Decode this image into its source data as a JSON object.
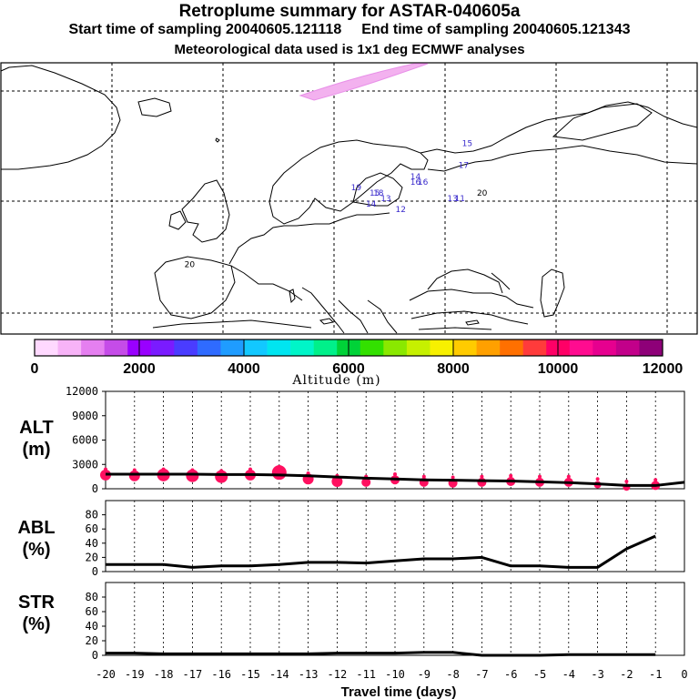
{
  "header": {
    "title": "Retroplume summary for ASTAR-040605a",
    "start_label": "Start time of sampling 20040605.121118",
    "end_label": "End time of sampling 20040605.121343",
    "met_label": "Meteorological data used is 1x1 deg ECMWF analyses"
  },
  "map": {
    "markers": [
      {
        "label": "20",
        "lon": -39,
        "lat": 48
      },
      {
        "label": "20",
        "lon": 40,
        "lat": 61
      },
      {
        "label": "19",
        "lon": 6,
        "lat": 62
      },
      {
        "label": "18",
        "lon": 12,
        "lat": 61
      },
      {
        "label": "17",
        "lon": 35,
        "lat": 66
      },
      {
        "label": "16",
        "lon": 22,
        "lat": 63
      },
      {
        "label": "15",
        "lon": 11,
        "lat": 61
      },
      {
        "label": "14",
        "lon": 10,
        "lat": 59
      },
      {
        "label": "13",
        "lon": 14,
        "lat": 60
      },
      {
        "label": "12",
        "lon": 18,
        "lat": 58
      },
      {
        "label": "11",
        "lon": 34,
        "lat": 60
      },
      {
        "label": "13",
        "lon": 32,
        "lat": 60
      },
      {
        "label": "16",
        "lon": 24,
        "lat": 63
      },
      {
        "label": "15",
        "lon": 36,
        "lat": 70
      },
      {
        "label": "14",
        "lon": 22,
        "lat": 64
      }
    ]
  },
  "colorbar": {
    "colors": [
      "#ffd9ff",
      "#f7b3f7",
      "#e57ff0",
      "#c54ce8",
      "#9900ff",
      "#7a1bff",
      "#4a3cff",
      "#2f6bff",
      "#1f9cff",
      "#12c8ff",
      "#00e5f0",
      "#00f5c8",
      "#00f08a",
      "#00d238",
      "#33e000",
      "#8ae800",
      "#c6f000",
      "#f7f000",
      "#ffcb00",
      "#ffa000",
      "#ff7000",
      "#ff3b3b",
      "#ff0066",
      "#ff0c90",
      "#e6008f",
      "#c2008a",
      "#8e0078"
    ],
    "ticks": [
      "0",
      "2000",
      "4000",
      "6000",
      "8000",
      "10000",
      "12000"
    ],
    "label": "Altitude (m)"
  },
  "panels": {
    "alt": {
      "label_top": "ALT",
      "label_bottom": "(m)",
      "ylim": [
        0,
        12000
      ],
      "yticks": [
        "12000",
        "9000",
        "6000",
        "3000",
        "0"
      ]
    },
    "abl": {
      "label_top": "ABL",
      "label_bottom": "(%)",
      "ylim": [
        0,
        100
      ],
      "yticks": [
        "80",
        "60",
        "40",
        "20",
        "0"
      ]
    },
    "str": {
      "label_top": "STR",
      "label_bottom": "(%)",
      "ylim": [
        0,
        100
      ],
      "yticks": [
        "80",
        "60",
        "40",
        "20",
        "0"
      ]
    }
  },
  "xaxis": {
    "label": "Travel time (days)",
    "ticks": [
      "-20",
      "-19",
      "-18",
      "-17",
      "-16",
      "-15",
      "-14",
      "-13",
      "-12",
      "-11",
      "-10",
      "-9",
      "-8",
      "-7",
      "-6",
      "-5",
      "-4",
      "-3",
      "-2",
      "-1",
      "0"
    ]
  },
  "chart_data": [
    {
      "type": "line",
      "title": "ALT",
      "ylabel": "ALT (m)",
      "xlabel": "Travel time (days)",
      "xlim": [
        -20,
        0
      ],
      "ylim": [
        0,
        12000
      ],
      "x": [
        -20,
        -19,
        -18,
        -17,
        -16,
        -15,
        -14,
        -13,
        -12,
        -11,
        -10,
        -9,
        -8,
        -7,
        -6,
        -5,
        -4,
        -3,
        -2,
        -1,
        0
      ],
      "values": [
        1800,
        1800,
        1800,
        1800,
        1750,
        1750,
        1700,
        1600,
        1450,
        1300,
        1200,
        1100,
        1050,
        1000,
        950,
        850,
        750,
        600,
        400,
        400,
        800
      ],
      "scatter_points": [
        {
          "x": -20,
          "y": 1700,
          "size": 6
        },
        {
          "x": -19,
          "y": 1600,
          "size": 6
        },
        {
          "x": -18,
          "y": 1700,
          "size": 7
        },
        {
          "x": -17,
          "y": 1600,
          "size": 7
        },
        {
          "x": -16,
          "y": 1500,
          "size": 7
        },
        {
          "x": -15,
          "y": 1700,
          "size": 6
        },
        {
          "x": -14,
          "y": 2000,
          "size": 8
        },
        {
          "x": -13,
          "y": 1200,
          "size": 6
        },
        {
          "x": -12,
          "y": 900,
          "size": 6
        },
        {
          "x": -11,
          "y": 800,
          "size": 5
        },
        {
          "x": -10,
          "y": 1100,
          "size": 5
        },
        {
          "x": -9,
          "y": 800,
          "size": 5
        },
        {
          "x": -8,
          "y": 700,
          "size": 5
        },
        {
          "x": -7,
          "y": 800,
          "size": 5
        },
        {
          "x": -6,
          "y": 900,
          "size": 5
        },
        {
          "x": -5,
          "y": 800,
          "size": 5
        },
        {
          "x": -4,
          "y": 800,
          "size": 5
        },
        {
          "x": -3,
          "y": 500,
          "size": 4
        },
        {
          "x": -2,
          "y": 200,
          "size": 4
        },
        {
          "x": -1,
          "y": 400,
          "size": 5
        }
      ]
    },
    {
      "type": "line",
      "title": "ABL",
      "ylabel": "ABL (%)",
      "xlabel": "Travel time (days)",
      "xlim": [
        -20,
        0
      ],
      "ylim": [
        0,
        100
      ],
      "x": [
        -20,
        -19,
        -18,
        -17,
        -16,
        -15,
        -14,
        -13,
        -12,
        -11,
        -10,
        -9,
        -8,
        -7,
        -6,
        -5,
        -4,
        -3,
        -2,
        -1
      ],
      "values": [
        10,
        10,
        10,
        6,
        8,
        8,
        10,
        13,
        13,
        12,
        15,
        18,
        18,
        20,
        8,
        8,
        6,
        6,
        32,
        50
      ]
    },
    {
      "type": "line",
      "title": "STR",
      "ylabel": "STR (%)",
      "xlabel": "Travel time (days)",
      "xlim": [
        -20,
        0
      ],
      "ylim": [
        0,
        100
      ],
      "x": [
        -20,
        -19,
        -18,
        -17,
        -16,
        -15,
        -14,
        -13,
        -12,
        -11,
        -10,
        -9,
        -8,
        -7,
        -6,
        -5,
        -4,
        -3,
        -2,
        -1
      ],
      "values": [
        3,
        3,
        2,
        2,
        2,
        2,
        2,
        2,
        3,
        3,
        3,
        4,
        4,
        0,
        0,
        0,
        1,
        1,
        1,
        1
      ]
    }
  ]
}
